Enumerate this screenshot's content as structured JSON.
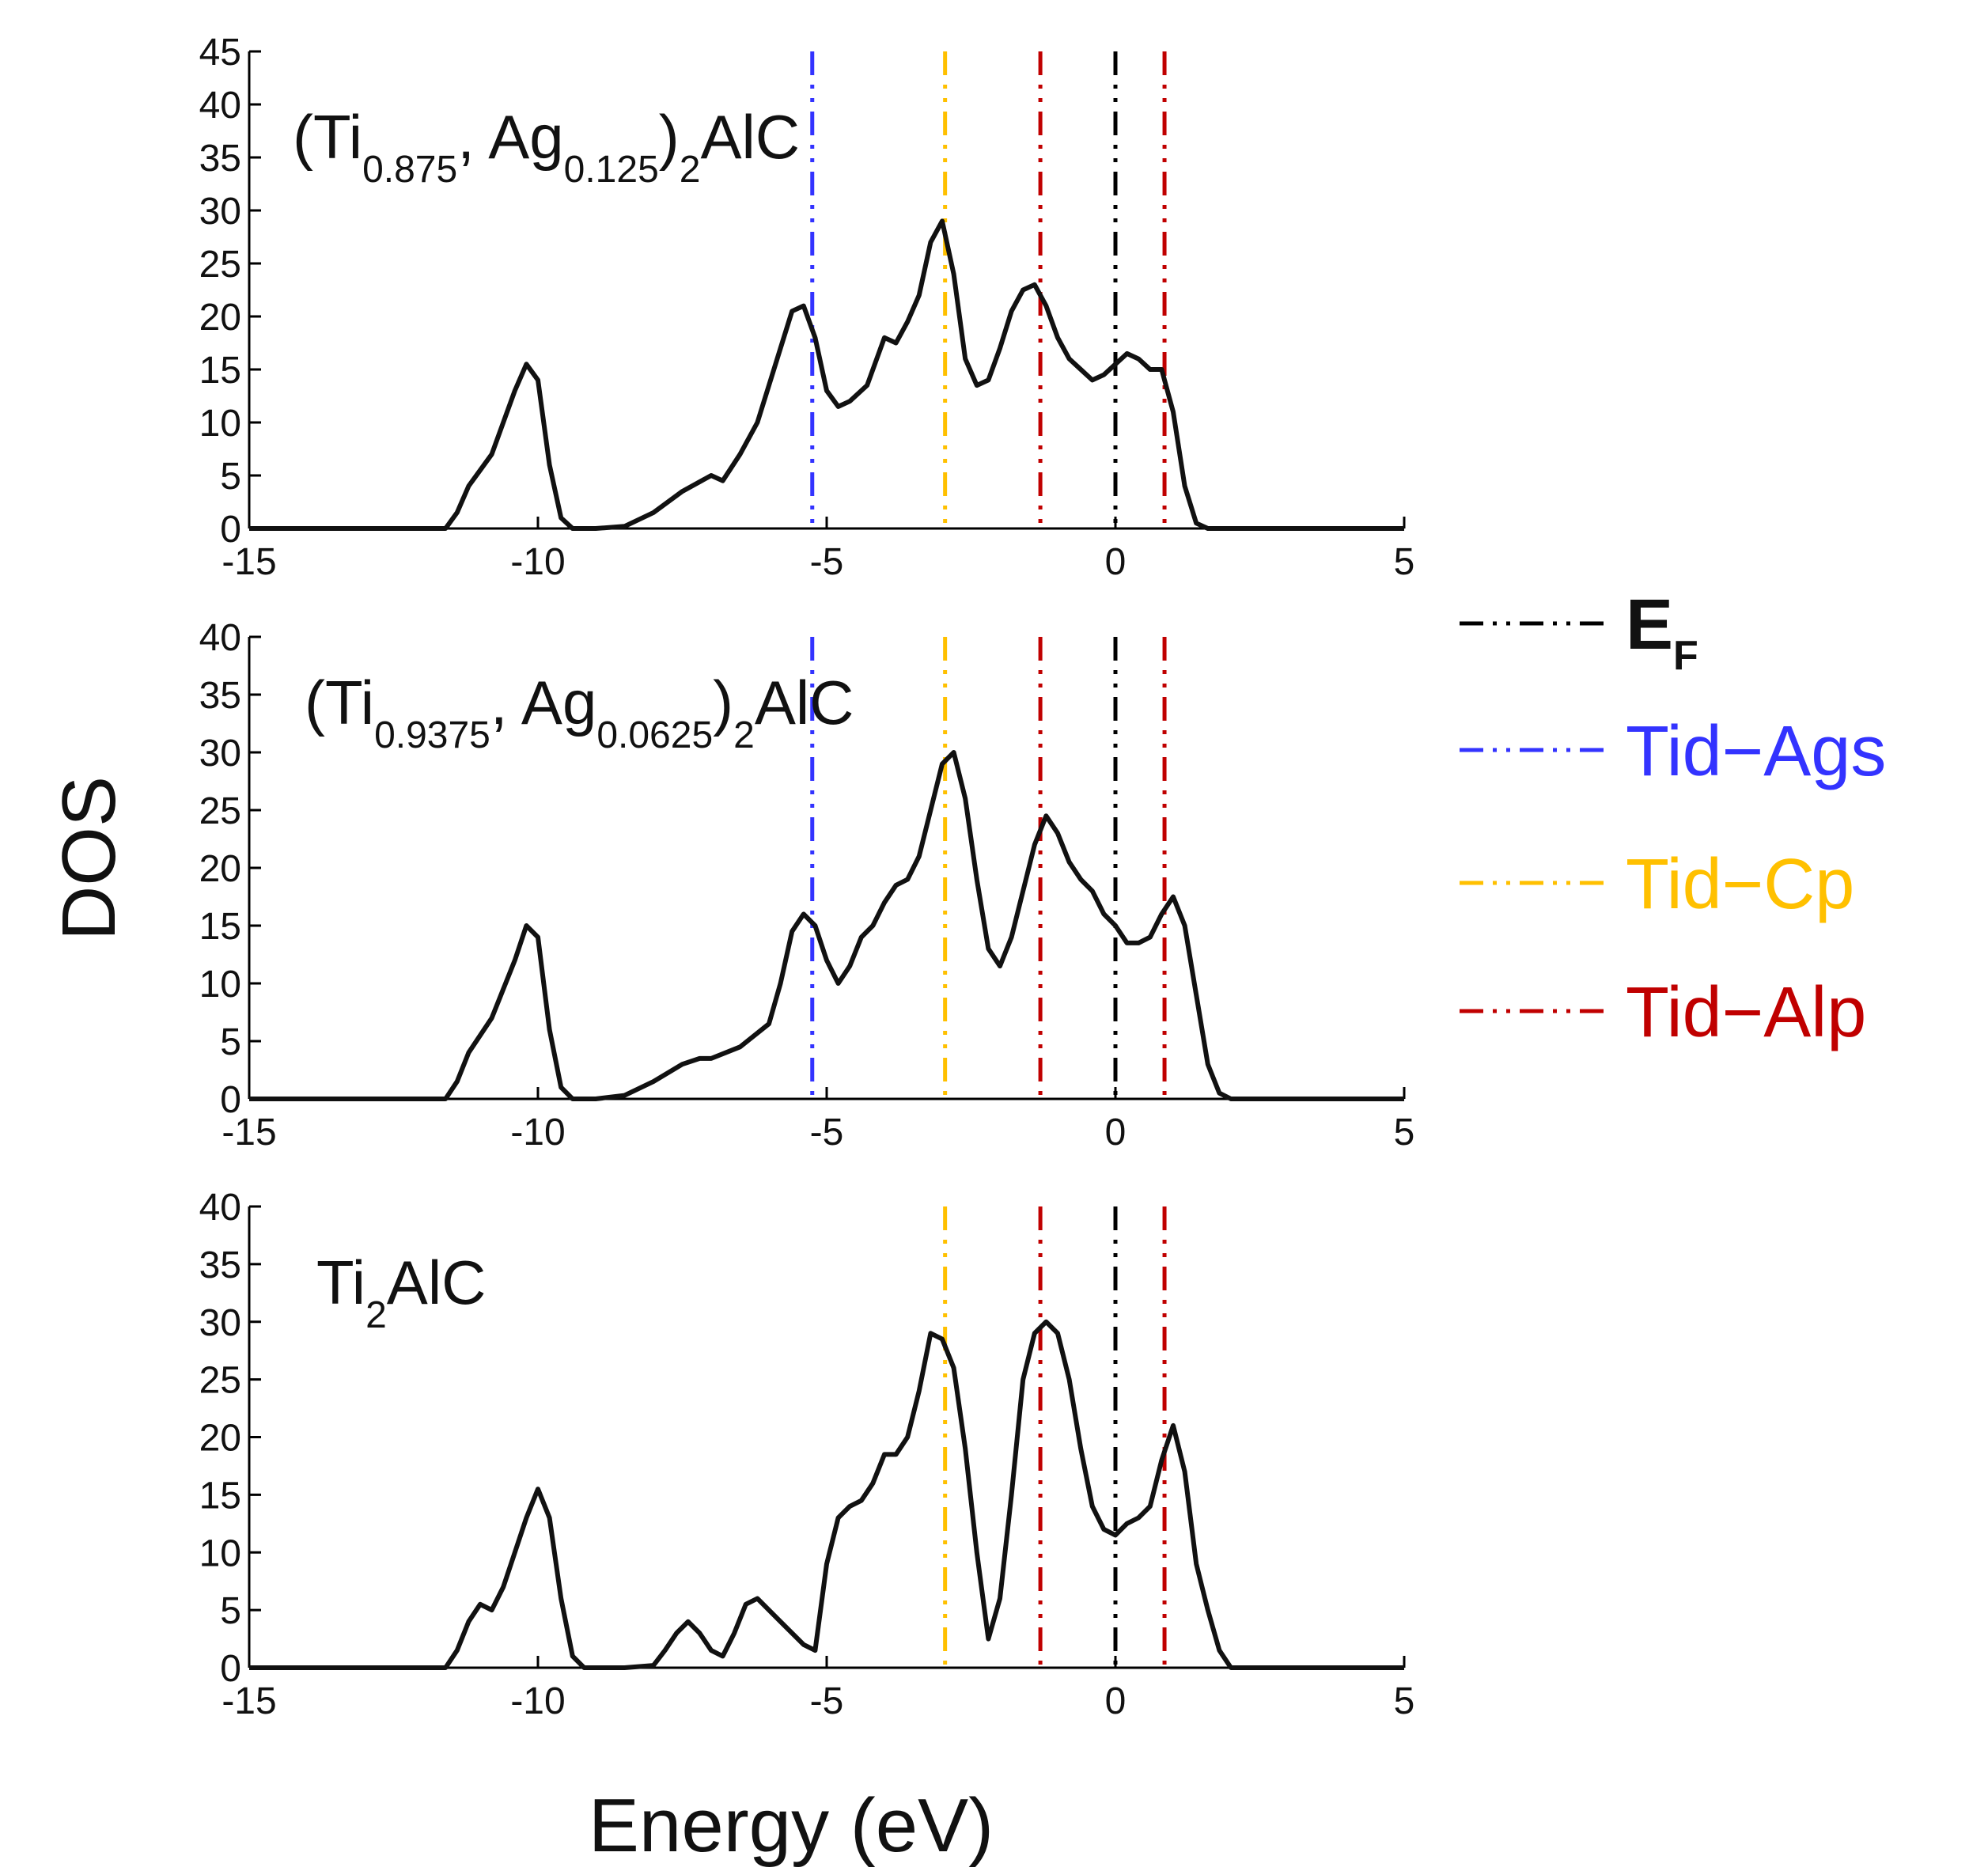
{
  "chart_data": {
    "type": "line",
    "xlabel": "Energy (eV)",
    "ylabel": "DOS",
    "xlim": [
      -15,
      5
    ],
    "x_ticks": [
      "-15",
      "-10",
      "-5",
      "0",
      "5"
    ],
    "legend": [
      {
        "id": "ef",
        "label_main": "E",
        "label_sub": "F",
        "color": "#000000",
        "x": 0.0
      },
      {
        "id": "ags",
        "label": "Tid−Ags",
        "color": "#3333ff",
        "x": -5.25
      },
      {
        "id": "cp",
        "label": "Tid−Cp",
        "color": "#ffc000",
        "x": -2.95
      },
      {
        "id": "alp",
        "label": "Tid−Alp",
        "color": "#c00000",
        "x": [
          -1.3,
          0.85
        ]
      }
    ],
    "panels": [
      {
        "id": "p1",
        "composition": [
          {
            "t": "(Ti",
            "s": "n"
          },
          {
            "t": "0.875",
            "s": "sub"
          },
          {
            "t": ", Ag",
            "s": "n"
          },
          {
            "t": "0.125",
            "s": "sub"
          },
          {
            "t": ")",
            "s": "n"
          },
          {
            "t": "2",
            "s": "sub"
          },
          {
            "t": "AlC",
            "s": "n"
          }
        ],
        "ylim": [
          0,
          45
        ],
        "y_ticks": [
          "0",
          "5",
          "10",
          "15",
          "20",
          "25",
          "30",
          "35",
          "40",
          "45"
        ],
        "vlines": [
          "ef",
          "ags",
          "cp",
          "alp"
        ],
        "series": {
          "x": [
            -15,
            -11.6,
            -11.4,
            -11.2,
            -11.0,
            -10.8,
            -10.6,
            -10.4,
            -10.2,
            -10.0,
            -9.8,
            -9.6,
            -9.4,
            -9.2,
            -9.0,
            -8.5,
            -8.0,
            -7.5,
            -7.0,
            -6.8,
            -6.5,
            -6.2,
            -6.0,
            -5.8,
            -5.6,
            -5.4,
            -5.2,
            -5.0,
            -4.8,
            -4.6,
            -4.3,
            -4.0,
            -3.8,
            -3.6,
            -3.4,
            -3.2,
            -3.0,
            -2.8,
            -2.6,
            -2.4,
            -2.2,
            -2.0,
            -1.8,
            -1.6,
            -1.4,
            -1.2,
            -1.0,
            -0.8,
            -0.6,
            -0.4,
            -0.2,
            0.0,
            0.2,
            0.4,
            0.6,
            0.8,
            1.0,
            1.2,
            1.4,
            1.6,
            1.8,
            2.0,
            5
          ],
          "y": [
            0,
            0,
            1.5,
            4,
            5.5,
            7,
            10,
            13,
            15.5,
            14,
            6,
            1,
            0,
            0,
            0,
            0.2,
            1.5,
            3.5,
            5,
            4.5,
            7,
            10,
            13.5,
            17,
            20.5,
            21,
            18,
            13,
            11.5,
            12,
            13.5,
            18,
            17.5,
            19.5,
            22,
            27,
            29,
            24,
            16,
            13.5,
            14,
            17,
            20.5,
            22.5,
            23,
            21,
            18,
            16,
            15,
            14,
            14.5,
            15.5,
            16.5,
            16,
            15,
            15,
            11,
            4,
            0.5,
            0,
            0,
            0,
            0
          ]
        }
      },
      {
        "id": "p2",
        "composition": [
          {
            "t": "(Ti",
            "s": "n"
          },
          {
            "t": "0.9375",
            "s": "sub"
          },
          {
            "t": ", Ag",
            "s": "n"
          },
          {
            "t": "0.0625",
            "s": "sub"
          },
          {
            "t": ")",
            "s": "n"
          },
          {
            "t": "2",
            "s": "sub"
          },
          {
            "t": "AlC",
            "s": "n"
          }
        ],
        "ylim": [
          0,
          40
        ],
        "y_ticks": [
          "0",
          "5",
          "10",
          "15",
          "20",
          "25",
          "30",
          "35",
          "40"
        ],
        "vlines": [
          "ef",
          "ags",
          "cp",
          "alp"
        ],
        "series": {
          "x": [
            -15,
            -11.6,
            -11.4,
            -11.2,
            -11.0,
            -10.8,
            -10.6,
            -10.4,
            -10.2,
            -10.0,
            -9.8,
            -9.6,
            -9.4,
            -9.2,
            -9.0,
            -8.5,
            -8.0,
            -7.5,
            -7.2,
            -7.0,
            -6.5,
            -6.0,
            -5.8,
            -5.6,
            -5.4,
            -5.2,
            -5.0,
            -4.8,
            -4.6,
            -4.4,
            -4.2,
            -4.0,
            -3.8,
            -3.6,
            -3.4,
            -3.2,
            -3.0,
            -2.8,
            -2.6,
            -2.4,
            -2.2,
            -2.0,
            -1.8,
            -1.6,
            -1.4,
            -1.2,
            -1.0,
            -0.8,
            -0.6,
            -0.4,
            -0.2,
            0.0,
            0.2,
            0.4,
            0.6,
            0.8,
            1.0,
            1.2,
            1.4,
            1.6,
            1.8,
            2.0,
            5
          ],
          "y": [
            0,
            0,
            1.5,
            4,
            5.5,
            7,
            9.5,
            12,
            15,
            14,
            6,
            1,
            0,
            0,
            0,
            0.3,
            1.5,
            3,
            3.5,
            3.5,
            4.5,
            6.5,
            10,
            14.5,
            16,
            15,
            12,
            10,
            11.5,
            14,
            15,
            17,
            18.5,
            19,
            21,
            25,
            29,
            30,
            26,
            19,
            13,
            11.5,
            14,
            18,
            22,
            24.5,
            23,
            20.5,
            19,
            18,
            16,
            15,
            13.5,
            13.5,
            14,
            16,
            17.5,
            15,
            9,
            3,
            0.5,
            0,
            0
          ]
        }
      },
      {
        "id": "p3",
        "composition": [
          {
            "t": "Ti",
            "s": "n"
          },
          {
            "t": "2",
            "s": "sub"
          },
          {
            "t": "AlC",
            "s": "n"
          }
        ],
        "ylim": [
          0,
          40
        ],
        "y_ticks": [
          "0",
          "5",
          "10",
          "15",
          "20",
          "25",
          "30",
          "35",
          "40"
        ],
        "vlines": [
          "ef",
          "cp",
          "alp"
        ],
        "series": {
          "x": [
            -15,
            -11.6,
            -11.4,
            -11.2,
            -11.0,
            -10.8,
            -10.6,
            -10.4,
            -10.2,
            -10.0,
            -9.8,
            -9.6,
            -9.4,
            -9.2,
            -9.0,
            -8.5,
            -8.0,
            -7.8,
            -7.6,
            -7.4,
            -7.2,
            -7.0,
            -6.8,
            -6.6,
            -6.4,
            -6.2,
            -6.0,
            -5.8,
            -5.6,
            -5.4,
            -5.2,
            -5.0,
            -4.8,
            -4.6,
            -4.4,
            -4.2,
            -4.0,
            -3.8,
            -3.6,
            -3.4,
            -3.2,
            -3.0,
            -2.8,
            -2.6,
            -2.4,
            -2.2,
            -2.0,
            -1.8,
            -1.6,
            -1.4,
            -1.2,
            -1.0,
            -0.8,
            -0.6,
            -0.4,
            -0.2,
            0.0,
            0.2,
            0.4,
            0.6,
            0.8,
            1.0,
            1.2,
            1.4,
            1.6,
            1.8,
            2.0,
            5
          ],
          "y": [
            0,
            0,
            1.5,
            4,
            5.5,
            5,
            7,
            10,
            13,
            15.5,
            13,
            6,
            1,
            0,
            0,
            0,
            0.2,
            1.5,
            3,
            4,
            3,
            1.5,
            1,
            3,
            5.5,
            6,
            5,
            4,
            3,
            2,
            1.5,
            9,
            13,
            14,
            14.5,
            16,
            18.5,
            18.5,
            20,
            24,
            29,
            28.5,
            26,
            19,
            10,
            2.5,
            6,
            15,
            25,
            29,
            30,
            29,
            25,
            19,
            14,
            12,
            11.5,
            12.5,
            13,
            14,
            18,
            21,
            17,
            9,
            5,
            1.5,
            0,
            0
          ]
        }
      }
    ]
  }
}
